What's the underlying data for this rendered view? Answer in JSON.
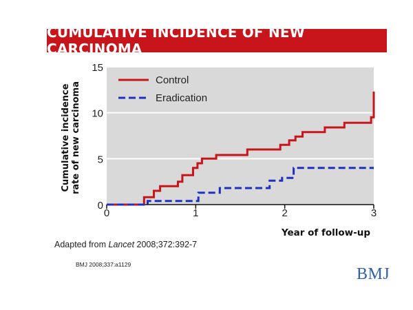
{
  "caption": {
    "prefix": "Adapted from ",
    "journal": "Lancet",
    "suffix": " 2008;372:392-7"
  },
  "citation": "BMJ 2008;337:a1129",
  "logo_text": "BMJ",
  "colors": {
    "title_bg": "#c8151b",
    "plot_bg": "#d9d9d9",
    "control": "#c8151b",
    "eradication": "#1f2fbf"
  },
  "chart_data": {
    "type": "line",
    "title": "CUMULATIVE INCIDENCE OF NEW CARCINOMA",
    "xlabel": "Year of follow-up",
    "ylabel_lines": [
      "Cumulative incidence",
      "rate of new carcinoma"
    ],
    "xlim": [
      0,
      3
    ],
    "ylim": [
      0,
      15
    ],
    "xticks": [
      0,
      1,
      2,
      3
    ],
    "yticks": [
      0,
      5,
      10,
      15
    ],
    "grid": "horizontal",
    "legend_position": "top-left",
    "step": true,
    "series": [
      {
        "name": "Control",
        "style": "solid",
        "color": "#c8151b",
        "points": [
          [
            0,
            0
          ],
          [
            0.42,
            0
          ],
          [
            0.42,
            0.8
          ],
          [
            0.53,
            0.8
          ],
          [
            0.53,
            1.5
          ],
          [
            0.6,
            1.5
          ],
          [
            0.6,
            2
          ],
          [
            0.8,
            2
          ],
          [
            0.8,
            2.5
          ],
          [
            0.85,
            2.5
          ],
          [
            0.85,
            3.2
          ],
          [
            0.97,
            3.2
          ],
          [
            0.97,
            4
          ],
          [
            1.02,
            4
          ],
          [
            1.02,
            4.5
          ],
          [
            1.07,
            4.5
          ],
          [
            1.07,
            5
          ],
          [
            1.23,
            5
          ],
          [
            1.23,
            5.4
          ],
          [
            1.58,
            5.4
          ],
          [
            1.58,
            6
          ],
          [
            1.95,
            6
          ],
          [
            1.95,
            6.5
          ],
          [
            2.05,
            6.5
          ],
          [
            2.05,
            7
          ],
          [
            2.12,
            7
          ],
          [
            2.12,
            7.4
          ],
          [
            2.2,
            7.4
          ],
          [
            2.2,
            7.9
          ],
          [
            2.45,
            7.9
          ],
          [
            2.45,
            8.4
          ],
          [
            2.67,
            8.4
          ],
          [
            2.67,
            8.9
          ],
          [
            2.97,
            8.9
          ],
          [
            2.97,
            9.5
          ],
          [
            3.0,
            9.5
          ],
          [
            3.0,
            12.3
          ]
        ]
      },
      {
        "name": "Eradication",
        "style": "dashed",
        "color": "#1f2fbf",
        "points": [
          [
            0,
            0
          ],
          [
            0.46,
            0
          ],
          [
            0.46,
            0.4
          ],
          [
            1.03,
            0.4
          ],
          [
            1.03,
            1.3
          ],
          [
            1.27,
            1.3
          ],
          [
            1.27,
            1.8
          ],
          [
            1.83,
            1.8
          ],
          [
            1.83,
            2.6
          ],
          [
            1.97,
            2.6
          ],
          [
            1.97,
            2.9
          ],
          [
            2.1,
            2.9
          ],
          [
            2.1,
            4
          ],
          [
            3.0,
            4
          ]
        ]
      }
    ]
  }
}
